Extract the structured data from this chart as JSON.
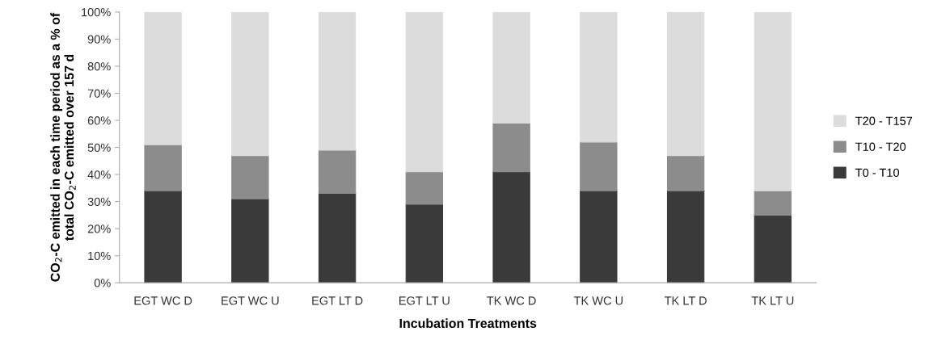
{
  "chart_data": {
    "type": "bar",
    "stacked": true,
    "xlabel": "Incubation Treatments",
    "ylabel": "CO$_{2}$-C emitted in each time period as a % of total CO$_{2}$-C emitted over 157 d",
    "categories": [
      "EGT WC D",
      "EGT WC U",
      "EGT LT D",
      "EGT LT U",
      "TK WC D",
      "TK WC U",
      "TK LT D",
      "TK LT U"
    ],
    "series": [
      {
        "name": "T0 - T10",
        "color": "#3a3a3a",
        "values": [
          34,
          31,
          33,
          29,
          41,
          34,
          34,
          25
        ]
      },
      {
        "name": "T10 - T20",
        "color": "#8c8c8c",
        "values": [
          17,
          16,
          16,
          12,
          18,
          18,
          13,
          9
        ]
      },
      {
        "name": "T20 - T157",
        "color": "#dcdcdc",
        "values": [
          49,
          53,
          51,
          59,
          41,
          48,
          53,
          66
        ]
      }
    ],
    "ylim": [
      0,
      100
    ],
    "yticks": [
      {
        "value": 0,
        "label": "0%"
      },
      {
        "value": 10,
        "label": "10%"
      },
      {
        "value": 20,
        "label": "20%"
      },
      {
        "value": 30,
        "label": "30%"
      },
      {
        "value": 40,
        "label": "40%"
      },
      {
        "value": 50,
        "label": "50%"
      },
      {
        "value": 60,
        "label": "60%"
      },
      {
        "value": 70,
        "label": "70%"
      },
      {
        "value": 80,
        "label": "80%"
      },
      {
        "value": 90,
        "label": "90%"
      },
      {
        "value": 100,
        "label": "100%"
      }
    ],
    "legend": "right"
  }
}
